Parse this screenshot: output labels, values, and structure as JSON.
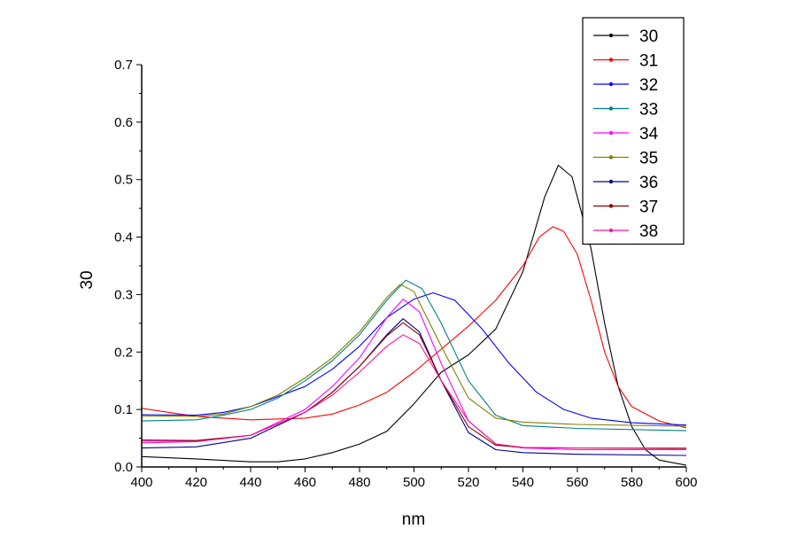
{
  "chart_data": {
    "type": "line",
    "title": "",
    "xlabel": "nm",
    "ylabel": "30",
    "xlim": [
      400,
      600
    ],
    "ylim": [
      0,
      0.7
    ],
    "x_ticks": [
      "400",
      "420",
      "440",
      "460",
      "480",
      "500",
      "520",
      "540",
      "560",
      "580",
      "600"
    ],
    "y_ticks": [
      "0.0",
      "0.1",
      "0.2",
      "0.3",
      "0.4",
      "0.5",
      "0.6",
      "0.7"
    ],
    "grid": false,
    "legend_position": "top-right",
    "series": [
      {
        "name": "30",
        "color": "#000000",
        "marker": "square",
        "points": [
          [
            400,
            0.018
          ],
          [
            420,
            0.014
          ],
          [
            440,
            0.009
          ],
          [
            450,
            0.009
          ],
          [
            460,
            0.014
          ],
          [
            470,
            0.025
          ],
          [
            480,
            0.04
          ],
          [
            490,
            0.062
          ],
          [
            500,
            0.11
          ],
          [
            510,
            0.165
          ],
          [
            520,
            0.195
          ],
          [
            530,
            0.24
          ],
          [
            540,
            0.34
          ],
          [
            548,
            0.47
          ],
          [
            553,
            0.525
          ],
          [
            558,
            0.505
          ],
          [
            565,
            0.38
          ],
          [
            570,
            0.25
          ],
          [
            575,
            0.14
          ],
          [
            580,
            0.07
          ],
          [
            585,
            0.03
          ],
          [
            590,
            0.012
          ],
          [
            600,
            0.003
          ]
        ]
      },
      {
        "name": "31",
        "color": "#ff0000",
        "marker": "circle",
        "points": [
          [
            400,
            0.102
          ],
          [
            410,
            0.095
          ],
          [
            420,
            0.088
          ],
          [
            440,
            0.082
          ],
          [
            460,
            0.085
          ],
          [
            470,
            0.092
          ],
          [
            480,
            0.108
          ],
          [
            490,
            0.13
          ],
          [
            500,
            0.165
          ],
          [
            510,
            0.205
          ],
          [
            520,
            0.245
          ],
          [
            530,
            0.29
          ],
          [
            540,
            0.35
          ],
          [
            546,
            0.4
          ],
          [
            551,
            0.418
          ],
          [
            555,
            0.41
          ],
          [
            560,
            0.37
          ],
          [
            565,
            0.29
          ],
          [
            570,
            0.2
          ],
          [
            575,
            0.14
          ],
          [
            580,
            0.105
          ],
          [
            590,
            0.08
          ],
          [
            600,
            0.068
          ]
        ]
      },
      {
        "name": "32",
        "color": "#0000ff",
        "marker": "triangle-up",
        "points": [
          [
            400,
            0.091
          ],
          [
            420,
            0.09
          ],
          [
            430,
            0.095
          ],
          [
            440,
            0.105
          ],
          [
            460,
            0.14
          ],
          [
            470,
            0.17
          ],
          [
            480,
            0.21
          ],
          [
            490,
            0.26
          ],
          [
            500,
            0.292
          ],
          [
            507,
            0.303
          ],
          [
            515,
            0.29
          ],
          [
            525,
            0.24
          ],
          [
            535,
            0.18
          ],
          [
            545,
            0.13
          ],
          [
            555,
            0.1
          ],
          [
            565,
            0.085
          ],
          [
            580,
            0.077
          ],
          [
            600,
            0.073
          ]
        ]
      },
      {
        "name": "33",
        "color": "#008080",
        "marker": "triangle-down",
        "points": [
          [
            400,
            0.08
          ],
          [
            420,
            0.082
          ],
          [
            430,
            0.09
          ],
          [
            440,
            0.1
          ],
          [
            450,
            0.12
          ],
          [
            460,
            0.15
          ],
          [
            470,
            0.185
          ],
          [
            480,
            0.23
          ],
          [
            490,
            0.29
          ],
          [
            497,
            0.325
          ],
          [
            503,
            0.31
          ],
          [
            510,
            0.25
          ],
          [
            520,
            0.15
          ],
          [
            530,
            0.09
          ],
          [
            540,
            0.072
          ],
          [
            560,
            0.067
          ],
          [
            600,
            0.063
          ]
        ]
      },
      {
        "name": "34",
        "color": "#ff00ff",
        "marker": "triangle-left",
        "points": [
          [
            400,
            0.045
          ],
          [
            420,
            0.045
          ],
          [
            440,
            0.055
          ],
          [
            460,
            0.1
          ],
          [
            470,
            0.14
          ],
          [
            480,
            0.19
          ],
          [
            490,
            0.26
          ],
          [
            496,
            0.292
          ],
          [
            502,
            0.27
          ],
          [
            510,
            0.18
          ],
          [
            520,
            0.08
          ],
          [
            530,
            0.04
          ],
          [
            540,
            0.033
          ],
          [
            560,
            0.03
          ],
          [
            600,
            0.03
          ]
        ]
      },
      {
        "name": "35",
        "color": "#808000",
        "marker": "triangle-right",
        "points": [
          [
            400,
            0.089
          ],
          [
            420,
            0.088
          ],
          [
            430,
            0.092
          ],
          [
            440,
            0.105
          ],
          [
            450,
            0.125
          ],
          [
            460,
            0.155
          ],
          [
            470,
            0.19
          ],
          [
            480,
            0.235
          ],
          [
            490,
            0.295
          ],
          [
            495,
            0.318
          ],
          [
            500,
            0.305
          ],
          [
            510,
            0.21
          ],
          [
            520,
            0.12
          ],
          [
            530,
            0.085
          ],
          [
            540,
            0.078
          ],
          [
            560,
            0.074
          ],
          [
            600,
            0.071
          ]
        ]
      },
      {
        "name": "36",
        "color": "#00008b",
        "marker": "diamond",
        "points": [
          [
            400,
            0.033
          ],
          [
            420,
            0.035
          ],
          [
            440,
            0.05
          ],
          [
            460,
            0.095
          ],
          [
            470,
            0.13
          ],
          [
            480,
            0.175
          ],
          [
            490,
            0.23
          ],
          [
            496,
            0.258
          ],
          [
            502,
            0.235
          ],
          [
            510,
            0.15
          ],
          [
            520,
            0.06
          ],
          [
            530,
            0.03
          ],
          [
            540,
            0.025
          ],
          [
            560,
            0.022
          ],
          [
            600,
            0.02
          ]
        ]
      },
      {
        "name": "37",
        "color": "#8b0000",
        "marker": "hexagon",
        "points": [
          [
            400,
            0.047
          ],
          [
            420,
            0.046
          ],
          [
            440,
            0.055
          ],
          [
            460,
            0.095
          ],
          [
            470,
            0.13
          ],
          [
            480,
            0.175
          ],
          [
            490,
            0.228
          ],
          [
            496,
            0.251
          ],
          [
            502,
            0.23
          ],
          [
            510,
            0.15
          ],
          [
            520,
            0.07
          ],
          [
            530,
            0.038
          ],
          [
            540,
            0.034
          ],
          [
            560,
            0.033
          ],
          [
            600,
            0.032
          ]
        ]
      },
      {
        "name": "38",
        "color": "#ff1493",
        "marker": "pentagon",
        "points": [
          [
            400,
            0.042
          ],
          [
            420,
            0.044
          ],
          [
            440,
            0.055
          ],
          [
            460,
            0.095
          ],
          [
            470,
            0.125
          ],
          [
            480,
            0.165
          ],
          [
            490,
            0.21
          ],
          [
            496,
            0.23
          ],
          [
            502,
            0.215
          ],
          [
            510,
            0.15
          ],
          [
            520,
            0.08
          ],
          [
            530,
            0.04
          ],
          [
            540,
            0.034
          ],
          [
            560,
            0.033
          ],
          [
            600,
            0.033
          ]
        ]
      }
    ]
  }
}
